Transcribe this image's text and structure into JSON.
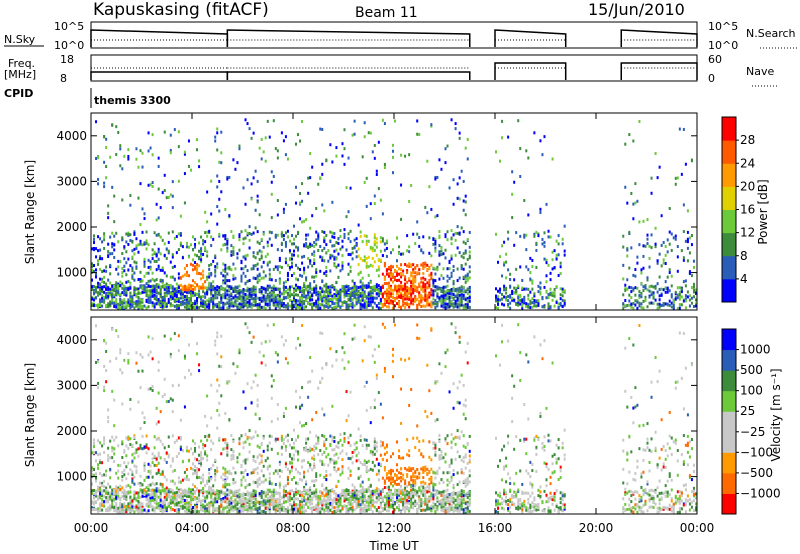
{
  "header": {
    "station": "Kapuskasing (fitACF)",
    "beam": "Beam 11",
    "date": "15/Jun/2010"
  },
  "top_panels": {
    "nsky_label": "N.Sky",
    "nsky_ticks": [
      "10^5",
      "10^0"
    ],
    "nsearch_label": "N.Search",
    "nsearch_ticks": [
      "10^5",
      "10^0"
    ],
    "freq_label": "Freq.",
    "freq_unit": "[MHz]",
    "freq_ticks": [
      "18",
      "8"
    ],
    "nave_label": "Nave",
    "nave_ticks": [
      "60",
      "0"
    ],
    "cpid_label": "CPID",
    "cpid_value": "themis 3300"
  },
  "colors": {
    "power_scale": [
      "#0000ff",
      "#2a5db8",
      "#3c8c3c",
      "#6cc93a",
      "#e0d000",
      "#ff9a00",
      "#ff5a00",
      "#ff0000"
    ],
    "velocity_scale": [
      "#ff0000",
      "#ff6a00",
      "#ff9a00",
      "#c8c8c8",
      "#c8c8c8",
      "#6cc93a",
      "#3c8c3c",
      "#2a5db8",
      "#0000ff"
    ],
    "ground_scatter": "#c8c8c8"
  },
  "chart_data": [
    {
      "type": "heatmap",
      "panel": "power",
      "ylabel": "Slant Range [km]",
      "xlabel": "Time UT",
      "x_ticks": [
        "00:00",
        "04:00",
        "08:00",
        "12:00",
        "16:00",
        "20:00",
        "00:00"
      ],
      "y_ticks": [
        "1000",
        "2000",
        "3000",
        "4000"
      ],
      "xlim": [
        0,
        24
      ],
      "ylim": [
        180,
        4500
      ],
      "colorbar": {
        "label": "Power [dB]",
        "ticks": [
          "4",
          "8",
          "12",
          "16",
          "20",
          "24",
          "28"
        ],
        "range": [
          0,
          32
        ]
      },
      "data_gaps_hours": [
        [
          15.0,
          16.0
        ],
        [
          18.8,
          21.0
        ]
      ]
    },
    {
      "type": "heatmap",
      "panel": "velocity",
      "ylabel": "Slant Range [km]",
      "xlabel": "Time UT",
      "x_ticks": [
        "00:00",
        "04:00",
        "08:00",
        "12:00",
        "16:00",
        "20:00",
        "00:00"
      ],
      "y_ticks": [
        "1000",
        "2000",
        "3000",
        "4000"
      ],
      "xlim": [
        0,
        24
      ],
      "ylim": [
        180,
        4500
      ],
      "colorbar": {
        "label": "Velocity [m s⁻¹]",
        "ticks": [
          "1000",
          "500",
          "100",
          "25",
          "−25",
          "−100",
          "−500",
          "−1000"
        ]
      },
      "data_gaps_hours": [
        [
          15.0,
          16.0
        ],
        [
          18.8,
          21.0
        ]
      ]
    }
  ]
}
